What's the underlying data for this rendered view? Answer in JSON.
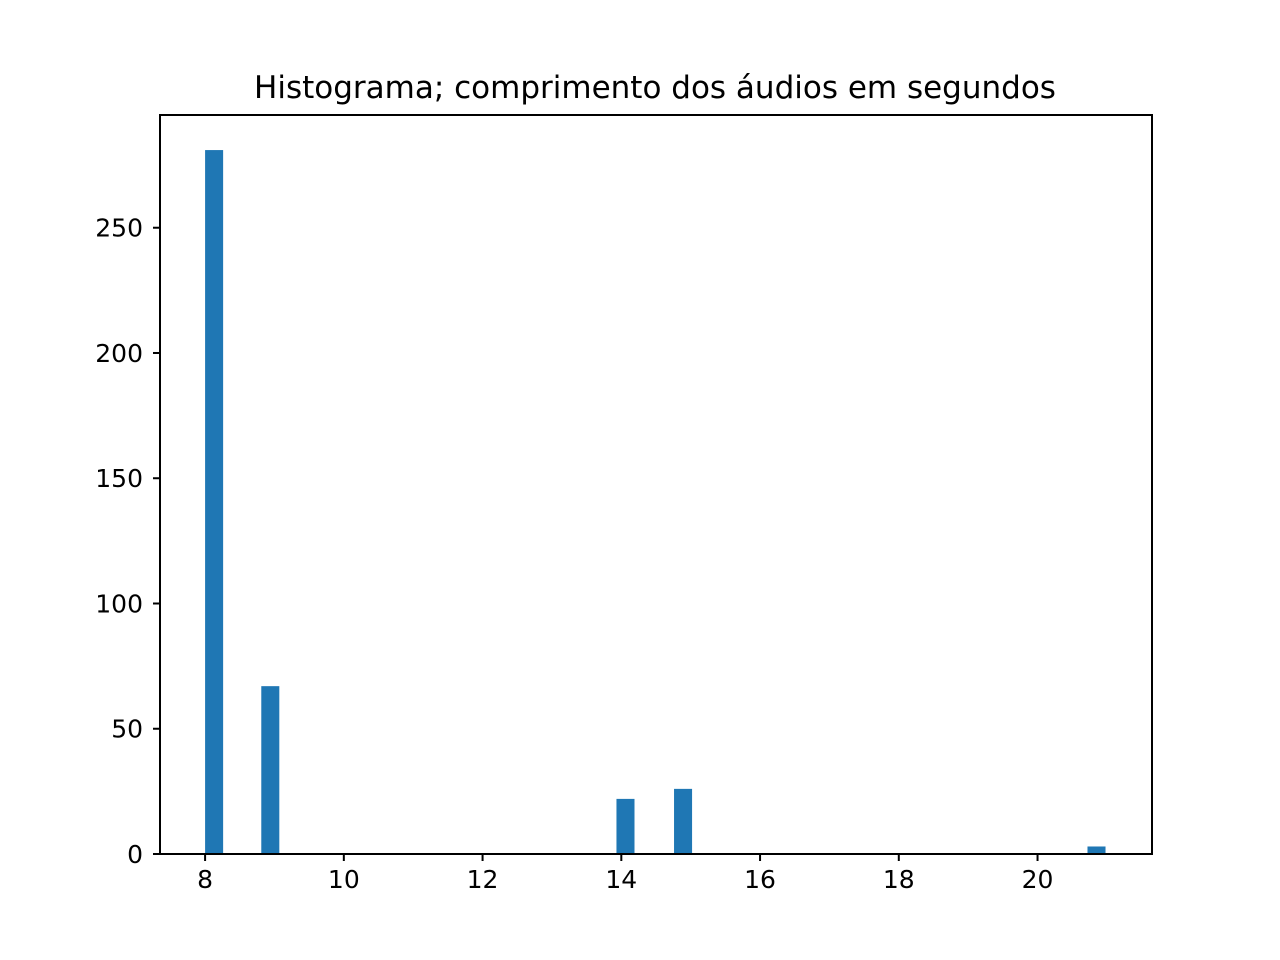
{
  "chart_data": {
    "type": "bar",
    "title": "Histograma; comprimento dos áudios em segundos",
    "xlabel": "",
    "ylabel": "",
    "xlim": [
      7.35,
      21.65
    ],
    "ylim": [
      0,
      295
    ],
    "x_ticks": [
      8,
      10,
      12,
      14,
      16,
      18,
      20
    ],
    "y_ticks": [
      0,
      50,
      100,
      150,
      200,
      250
    ],
    "bin_width": 0.26,
    "bars": [
      {
        "x_start": 8.0,
        "value": 281
      },
      {
        "x_start": 8.81,
        "value": 67
      },
      {
        "x_start": 13.93,
        "value": 22
      },
      {
        "x_start": 14.76,
        "value": 26
      },
      {
        "x_start": 20.72,
        "value": 3
      }
    ],
    "grid": false,
    "legend": "none",
    "bar_color": "#1f77b4"
  }
}
